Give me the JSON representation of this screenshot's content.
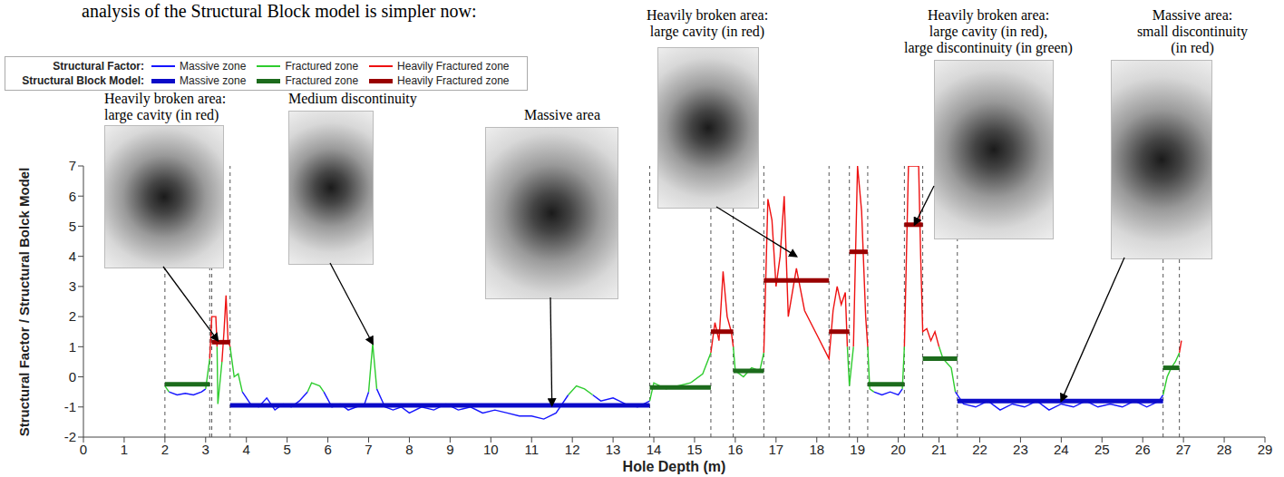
{
  "text_above": "analysis of the Structural Block model is simpler now:",
  "chart_data": {
    "type": "line",
    "x_label": "Hole Depth (m)",
    "y_label": "Structural Factor / Structural Bolck Model",
    "xlim": [
      0,
      29
    ],
    "ylim": [
      -2,
      7
    ],
    "xticks": [
      0,
      1,
      2,
      3,
      4,
      5,
      6,
      7,
      8,
      9,
      10,
      11,
      12,
      13,
      14,
      15,
      16,
      17,
      18,
      19,
      20,
      21,
      22,
      23,
      24,
      25,
      26,
      27,
      28,
      29
    ],
    "yticks": [
      -2,
      -1,
      0,
      1,
      2,
      3,
      4,
      5,
      6,
      7
    ],
    "grid": false,
    "legend": "top-left",
    "structural_factor": {
      "name": "Structural Factor:",
      "series": [
        {
          "name": "Massive zone",
          "color": "#1515ff",
          "x": [
            2.1,
            2.3,
            2.5,
            2.7,
            2.9,
            3.0,
            null,
            3.9,
            4.1,
            4.3,
            4.5,
            4.7,
            4.9,
            5.1,
            5.3,
            5.5,
            null,
            5.9,
            6.1,
            6.3,
            6.5,
            6.7,
            6.9,
            7.0,
            null,
            7.2,
            7.4,
            7.6,
            7.8,
            8.0,
            8.3,
            8.6,
            8.9,
            9.2,
            9.5,
            9.8,
            10.1,
            10.4,
            10.7,
            11.0,
            11.3,
            11.6,
            11.9,
            null,
            12.5,
            12.7,
            13.0,
            13.3,
            13.6,
            13.9,
            null,
            19.4,
            19.6,
            19.8,
            20.0,
            20.1,
            null,
            21.4,
            21.6,
            21.9,
            22.2,
            22.5,
            22.8,
            23.1,
            23.4,
            23.7,
            24.0,
            24.3,
            24.6,
            24.9,
            25.2,
            25.5,
            25.8,
            26.1,
            26.4,
            26.5
          ],
          "values": [
            -0.5,
            -0.6,
            -0.55,
            -0.6,
            -0.5,
            -0.4,
            null,
            -0.5,
            -0.9,
            -1.0,
            -0.7,
            -1.1,
            -0.9,
            -1.0,
            -0.8,
            -0.5,
            null,
            -0.5,
            -1.0,
            -0.9,
            -1.1,
            -1.0,
            -0.9,
            -0.5,
            null,
            -0.4,
            -1.0,
            -1.1,
            -1.0,
            -1.2,
            -1.0,
            -1.1,
            -0.9,
            -1.1,
            -1.0,
            -1.2,
            -1.1,
            -1.2,
            -1.3,
            -1.3,
            -1.4,
            -1.2,
            -0.6,
            null,
            -0.6,
            -0.8,
            -0.7,
            -0.9,
            -1.0,
            -0.8,
            null,
            -0.5,
            -0.6,
            -0.5,
            -0.6,
            -0.4,
            null,
            -0.5,
            -0.9,
            -1.0,
            -0.8,
            -1.1,
            -0.9,
            -1.0,
            -0.8,
            -1.1,
            -0.9,
            -1.0,
            -0.8,
            -1.0,
            -0.9,
            -1.0,
            -0.8,
            -1.0,
            -0.8,
            -0.6
          ]
        },
        {
          "name": "Fractured zone",
          "color": "#2ecc2e",
          "x": [
            2.0,
            2.1,
            null,
            3.0,
            3.1,
            null,
            3.28,
            3.3,
            3.4,
            null,
            3.6,
            3.7,
            3.8,
            3.9,
            null,
            5.5,
            5.6,
            5.8,
            5.9,
            null,
            7.0,
            7.1,
            7.2,
            null,
            11.9,
            12.1,
            12.3,
            12.5,
            null,
            13.9,
            14.0,
            14.3,
            14.6,
            14.9,
            15.2,
            15.4,
            null,
            15.95,
            16.0,
            16.2,
            16.4,
            16.6,
            16.7,
            null,
            18.75,
            18.8,
            18.9,
            null,
            19.25,
            19.3,
            19.4,
            null,
            20.1,
            20.15,
            null,
            21.0,
            21.1,
            21.3,
            21.4,
            null,
            26.5,
            26.6,
            26.7,
            26.8,
            26.9
          ],
          "values": [
            -0.3,
            -0.5,
            null,
            -0.4,
            0.6,
            null,
            1.0,
            -0.9,
            0.5,
            null,
            1.0,
            0.0,
            0.1,
            -0.5,
            null,
            -0.5,
            -0.2,
            -0.3,
            -0.5,
            null,
            -0.5,
            1.1,
            -0.4,
            null,
            -0.6,
            -0.3,
            -0.4,
            -0.6,
            null,
            -0.8,
            -0.2,
            -0.4,
            -0.3,
            -0.2,
            0.1,
            0.8,
            null,
            1.0,
            0.2,
            0.0,
            0.3,
            0.2,
            0.8,
            null,
            1.0,
            -0.3,
            1.0,
            null,
            1.0,
            -0.4,
            -0.5,
            null,
            -0.4,
            1.0,
            null,
            1.0,
            0.6,
            0.3,
            -0.5,
            null,
            -0.6,
            0.0,
            0.3,
            0.5,
            0.8
          ]
        },
        {
          "name": "Heavily Fractured zone",
          "color": "#ee1111",
          "x": [
            3.1,
            3.15,
            3.25,
            3.28,
            null,
            3.4,
            3.45,
            3.5,
            3.55,
            3.6,
            null,
            15.4,
            15.5,
            15.6,
            15.7,
            15.8,
            15.9,
            15.95,
            null,
            16.7,
            16.8,
            16.9,
            17.0,
            17.1,
            17.2,
            17.3,
            17.5,
            17.7,
            18.0,
            18.3,
            18.4,
            18.5,
            18.6,
            18.7,
            18.75,
            null,
            18.9,
            19.0,
            19.1,
            19.2,
            19.25,
            null,
            20.15,
            20.25,
            20.5,
            20.55,
            20.6,
            20.7,
            20.8,
            20.9,
            21.0,
            null,
            26.9,
            26.95
          ],
          "values": [
            0.6,
            2.0,
            2.0,
            1.0,
            null,
            0.5,
            1.5,
            2.7,
            1.2,
            1.0,
            null,
            0.8,
            1.8,
            1.2,
            3.5,
            2.0,
            1.5,
            1.0,
            null,
            0.8,
            5.9,
            5.2,
            3.0,
            4.0,
            6.0,
            2.0,
            3.6,
            2.2,
            1.4,
            0.6,
            2.2,
            3.0,
            2.4,
            2.8,
            1.0,
            null,
            1.0,
            7.0,
            5.5,
            2.0,
            1.0,
            null,
            1.0,
            7.0,
            7.0,
            4.0,
            1.5,
            1.6,
            1.2,
            1.5,
            1.0,
            null,
            0.8,
            1.2
          ]
        }
      ]
    },
    "structural_block_model": {
      "name": "Structural Block Model:",
      "series": [
        {
          "name": "Massive zone",
          "color": "#0a0ac8",
          "segments": [
            {
              "x": [
                3.6,
                13.9
              ],
              "value": -0.95
            },
            {
              "x": [
                21.45,
                26.5
              ],
              "value": -0.8
            }
          ]
        },
        {
          "name": "Fractured zone",
          "color": "#1c6b1c",
          "segments": [
            {
              "x": [
                2.0,
                3.1
              ],
              "value": -0.25
            },
            {
              "x": [
                13.9,
                15.4
              ],
              "value": -0.35
            },
            {
              "x": [
                15.95,
                16.7
              ],
              "value": 0.2
            },
            {
              "x": [
                19.25,
                20.15
              ],
              "value": -0.25
            },
            {
              "x": [
                20.6,
                21.45
              ],
              "value": 0.6
            },
            {
              "x": [
                26.5,
                26.9
              ],
              "value": 0.3
            }
          ]
        },
        {
          "name": "Heavily Fractured zone",
          "color": "#990000",
          "segments": [
            {
              "x": [
                3.15,
                3.6
              ],
              "value": 1.15
            },
            {
              "x": [
                15.4,
                15.95
              ],
              "value": 1.5
            },
            {
              "x": [
                16.7,
                18.3
              ],
              "value": 3.2
            },
            {
              "x": [
                18.3,
                18.8
              ],
              "value": 1.5
            },
            {
              "x": [
                18.8,
                19.25
              ],
              "value": 4.15
            },
            {
              "x": [
                20.15,
                20.6
              ],
              "value": 5.05
            }
          ]
        }
      ]
    },
    "annotations": [
      {
        "text": [
          "Heavily broken area:",
          "large cavity (in red)"
        ],
        "x": 3.3,
        "y": 1.2
      },
      {
        "text": [
          "Medium discontinuity"
        ],
        "x": 7.1,
        "y": 1.1
      },
      {
        "text": [
          "Massive area"
        ],
        "x": 11.5,
        "y": -0.95
      },
      {
        "text": [
          "Heavily broken area:",
          "large cavity (in red)"
        ],
        "x": 17.5,
        "y": 4.0
      },
      {
        "text": [
          "Heavily broken area:",
          "large cavity (in red),",
          "large discontinuity (in green)"
        ],
        "x": 20.4,
        "y": 5.05
      },
      {
        "text": [
          "Massive area:",
          "small discontinuity",
          "(in red)"
        ],
        "x": 24.0,
        "y": -0.8
      }
    ]
  }
}
